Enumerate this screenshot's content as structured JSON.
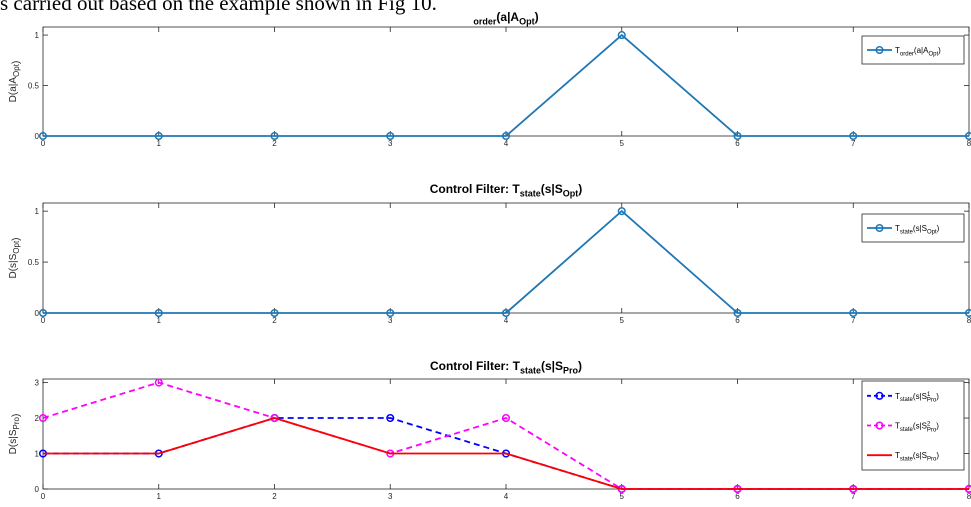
{
  "header_text": "s carried out based on the example shown in Fig 10.",
  "chart_data": [
    {
      "type": "line",
      "title": {
        "main": "",
        "sub": "order",
        "tail": "(a|A",
        "sub2": "Opt",
        "end": ")"
      },
      "ylabel": {
        "main": "D(a|A",
        "sub": "Opt",
        "end": ")"
      },
      "x": [
        0,
        1,
        2,
        3,
        4,
        5,
        6,
        7,
        8
      ],
      "xticks": [
        "0",
        "1",
        "2",
        "3",
        "4",
        "5",
        "6",
        "7",
        "8"
      ],
      "yticks": [
        "0",
        "0.5",
        "1"
      ],
      "ylim": [
        0,
        1.08
      ],
      "xlim": [
        0,
        8
      ],
      "series": [
        {
          "values": [
            0,
            0,
            0,
            0,
            0,
            1,
            0,
            0,
            0
          ],
          "color": "#1f77b4",
          "dash": "solid",
          "marker": "circle",
          "legend": {
            "main": "T",
            "sub": "order",
            "tail": "(a|A",
            "sub2": "Opt",
            "end": ")"
          }
        }
      ]
    },
    {
      "type": "line",
      "title": {
        "main": "Control Filter: T",
        "sub": "state",
        "tail": "(s|S",
        "sub2": "Opt",
        "end": ")"
      },
      "ylabel": {
        "main": "D(s|S",
        "sub": "Opt",
        "end": ")"
      },
      "x": [
        0,
        1,
        2,
        3,
        4,
        5,
        6,
        7,
        8
      ],
      "xticks": [
        "0",
        "1",
        "2",
        "3",
        "4",
        "5",
        "6",
        "7",
        "8"
      ],
      "yticks": [
        "0",
        "0.5",
        "1"
      ],
      "ylim": [
        0,
        1.08
      ],
      "xlim": [
        0,
        8
      ],
      "series": [
        {
          "values": [
            0,
            0,
            0,
            0,
            0,
            1,
            0,
            0,
            0
          ],
          "color": "#1f77b4",
          "dash": "solid",
          "marker": "circle",
          "legend": {
            "main": "T",
            "sub": "state",
            "tail": "(s|S",
            "sub2": "Opt",
            "end": ")"
          }
        }
      ]
    },
    {
      "type": "line",
      "title": {
        "main": "Control Filter: T",
        "sub": "state",
        "tail": "(s|S",
        "sub2": "Pro",
        "end": ")"
      },
      "ylabel": {
        "main": "D(s|S",
        "sub": "Pro",
        "end": ")"
      },
      "x": [
        0,
        1,
        2,
        3,
        4,
        5,
        6,
        7,
        8
      ],
      "xticks": [
        "0",
        "1",
        "2",
        "3",
        "4",
        "5",
        "6",
        "7",
        "8"
      ],
      "yticks": [
        "0",
        "1",
        "2",
        "3"
      ],
      "ylim": [
        0,
        3.1
      ],
      "xlim": [
        0,
        8
      ],
      "series": [
        {
          "values": [
            1,
            1,
            2,
            2,
            1,
            0,
            0,
            0,
            0
          ],
          "color": "#0000ff",
          "dash": "dashed",
          "marker": "circle",
          "legend": {
            "main": "T",
            "sub": "state",
            "tail": "(s|S",
            "sup": "1",
            "sub2": "Pro",
            "end": ")"
          }
        },
        {
          "values": [
            2,
            3,
            2,
            1,
            2,
            0,
            0,
            0,
            0
          ],
          "color": "#ff00ff",
          "dash": "dashed",
          "marker": "circle",
          "legend": {
            "main": "T",
            "sub": "state",
            "tail": "(s|S",
            "sup": "2",
            "sub2": "Pro",
            "end": ")"
          }
        },
        {
          "values": [
            1,
            1,
            2,
            1,
            1,
            0,
            0,
            0,
            0
          ],
          "color": "#ff0000",
          "dash": "solid",
          "marker": "none",
          "legend": {
            "main": "T",
            "sub": "state",
            "tail": "(s|S",
            "sub2": "Pro",
            "end": ")"
          }
        }
      ]
    }
  ]
}
